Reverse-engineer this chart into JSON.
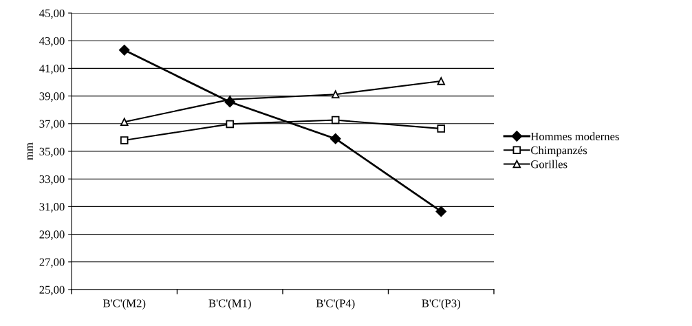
{
  "chart_data": {
    "type": "line",
    "ylabel": "mm",
    "categories": [
      "B'C'(M2)",
      "B'C'(M1)",
      "B'C'(P4)",
      "B'C'(P3)"
    ],
    "series": [
      {
        "name": "Hommes modernes",
        "color": "#000000",
        "marker": "diamond",
        "values": [
          42.32,
          38.57,
          35.91,
          30.65
        ]
      },
      {
        "name": "Chimpanzés",
        "color": "#000000",
        "marker": "square",
        "values": [
          35.8,
          36.97,
          37.26,
          36.64
        ]
      },
      {
        "name": "Gorilles",
        "color": "#000000",
        "marker": "triangle",
        "values": [
          37.13,
          38.75,
          39.12,
          40.08
        ]
      }
    ],
    "ylim": [
      25,
      45
    ],
    "yticks": [
      {
        "value": 25,
        "label": "25,00"
      },
      {
        "value": 27,
        "label": "27,00"
      },
      {
        "value": 29,
        "label": "29,00"
      },
      {
        "value": 31,
        "label": "31,00"
      },
      {
        "value": 33,
        "label": "33,00"
      },
      {
        "value": 35,
        "label": "35,00"
      },
      {
        "value": 37,
        "label": "37,00"
      },
      {
        "value": 39,
        "label": "39,00"
      },
      {
        "value": 41,
        "label": "41,00"
      },
      {
        "value": 43,
        "label": "43,00"
      },
      {
        "value": 45,
        "label": "45,00"
      }
    ],
    "grid": "y",
    "legend": "right",
    "line_style": "solid"
  }
}
